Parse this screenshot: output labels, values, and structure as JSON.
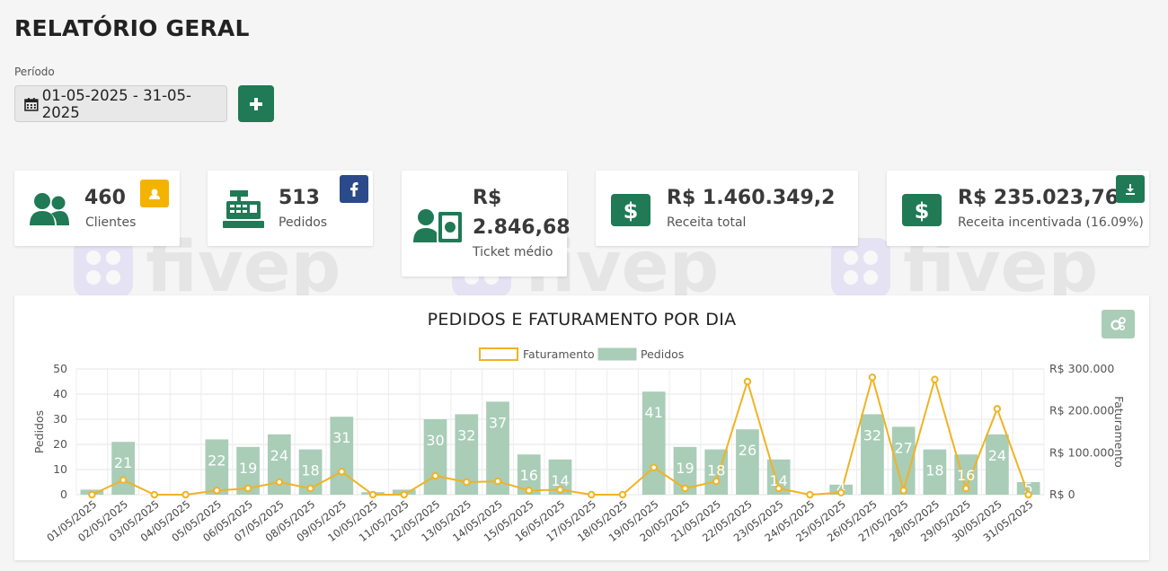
{
  "page": {
    "title": "RELATÓRIO GERAL"
  },
  "period": {
    "label": "Período",
    "range": "01-05-2025 - 31-05-2025"
  },
  "cards": {
    "clientes": {
      "value": "460",
      "label": "Clientes",
      "badge_color": "#f5b301"
    },
    "pedidos": {
      "value": "513",
      "label": "Pedidos",
      "badge_color": "#2b4a8a"
    },
    "ticket": {
      "value_line1": "R$",
      "value_line2": "2.846,68",
      "label": "Ticket médio"
    },
    "receita_total": {
      "value": "R$ 1.460.349,2",
      "label": "Receita total"
    },
    "receita_incentivada": {
      "value": "R$ 235.023,76",
      "label": "Receita incentivada (16.09%)",
      "badge_color": "#1f7a55"
    }
  },
  "watermark": {
    "text": "fivep"
  },
  "colors": {
    "primary": "#1f7a55",
    "bar": "#a9cdb7",
    "line": "#f0b323"
  },
  "chart_data": {
    "type": "bar",
    "title": "PEDIDOS E FATURAMENTO POR DIA",
    "categories": [
      "01/05/2025",
      "02/05/2025",
      "03/05/2025",
      "04/05/2025",
      "05/05/2025",
      "06/05/2025",
      "07/05/2025",
      "08/05/2025",
      "09/05/2025",
      "10/05/2025",
      "11/05/2025",
      "12/05/2025",
      "13/05/2025",
      "14/05/2025",
      "15/05/2025",
      "16/05/2025",
      "17/05/2025",
      "18/05/2025",
      "19/05/2025",
      "20/05/2025",
      "21/05/2025",
      "22/05/2025",
      "23/05/2025",
      "24/05/2025",
      "25/05/2025",
      "26/05/2025",
      "27/05/2025",
      "28/05/2025",
      "29/05/2025",
      "30/05/2025",
      "31/05/2025"
    ],
    "series": [
      {
        "name": "Pedidos",
        "type": "bar",
        "axis": "left",
        "values": [
          2,
          21,
          0,
          0,
          22,
          19,
          24,
          18,
          31,
          1,
          2,
          30,
          32,
          37,
          16,
          14,
          0,
          0,
          41,
          19,
          18,
          26,
          14,
          0,
          4,
          32,
          27,
          18,
          16,
          24,
          5
        ]
      },
      {
        "name": "Faturamento",
        "type": "line",
        "axis": "right",
        "values": [
          0,
          35000,
          0,
          0,
          10000,
          15000,
          30000,
          15000,
          55000,
          0,
          0,
          45000,
          30000,
          32000,
          10000,
          12000,
          0,
          0,
          65000,
          15000,
          32000,
          270000,
          15000,
          0,
          5000,
          280000,
          10000,
          275000,
          15000,
          205000,
          0
        ]
      }
    ],
    "ylabel": "Pedidos",
    "y2label": "Faturamento",
    "ylim": [
      0,
      50
    ],
    "y2lim": [
      0,
      300000
    ],
    "yticks": [
      "0",
      "10",
      "20",
      "30",
      "40",
      "50"
    ],
    "y2ticks": [
      "R$ 0",
      "R$ 100.000",
      "R$ 200.000",
      "R$ 300.000"
    ],
    "legend": [
      "Faturamento",
      "Pedidos"
    ],
    "legend_position": "top",
    "grid": true
  }
}
